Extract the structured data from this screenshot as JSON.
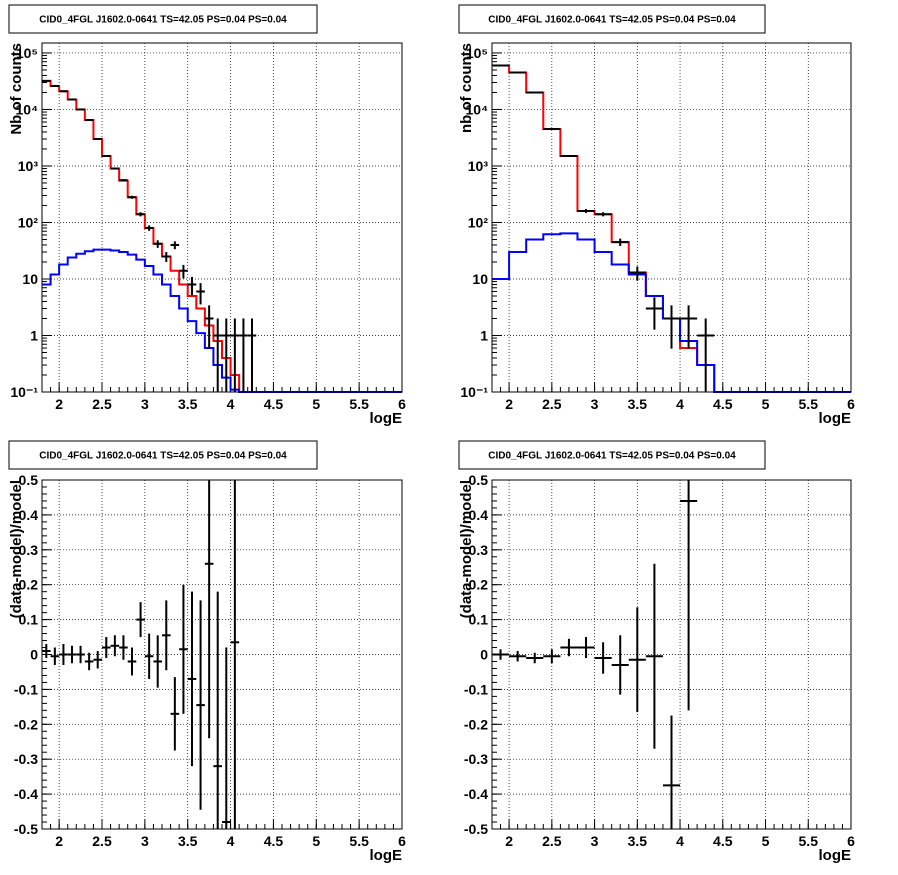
{
  "chart_data": [
    {
      "type": "line",
      "title": "CID0_4FGL J1602.0-0641 TS=42.05 PS=0.04 PS=0.04",
      "xlabel": "logE",
      "ylabel": "Nb of counts",
      "yscale": "log",
      "xlim": [
        1.8,
        6
      ],
      "ylim": [
        0.1,
        150000
      ],
      "x_ticks": [
        "2",
        "2.5",
        "3",
        "3.5",
        "4",
        "4.5",
        "5",
        "5.5",
        "6"
      ],
      "y_ticks": [
        "10^-1",
        "1",
        "10",
        "10^2",
        "10^3",
        "10^4",
        "10^5"
      ],
      "grid": true,
      "bin_edges": [
        1.8,
        1.9,
        2.0,
        2.1,
        2.2,
        2.3,
        2.4,
        2.5,
        2.6,
        2.7,
        2.8,
        2.9,
        3.0,
        3.1,
        3.2,
        3.3,
        3.4,
        3.5,
        3.6,
        3.7,
        3.8,
        3.9,
        4.0,
        4.1,
        4.2,
        4.3,
        4.4,
        4.5,
        4.6,
        4.7,
        4.8,
        4.9,
        5.0,
        5.1,
        5.2,
        5.3,
        5.4,
        5.5,
        5.6,
        5.7,
        5.8,
        5.9,
        6.0
      ],
      "series": [
        {
          "role": "total model",
          "color": "#ff0000",
          "values": [
            32000,
            26000,
            21000,
            15000,
            10000,
            6500,
            3000,
            1500,
            900,
            550,
            280,
            140,
            80,
            42,
            25,
            14,
            8,
            5,
            3,
            1.5,
            0.8,
            0.4,
            0.2,
            0.1,
            0.1,
            0.1,
            0.1,
            0.1,
            0.1,
            0.1,
            0.1,
            0.1,
            0.1,
            0.1,
            0.1,
            0.1,
            0.1,
            0.1,
            0.1,
            0.1,
            0.1,
            0.1
          ]
        },
        {
          "role": "source model",
          "color": "#0000ff",
          "values": [
            8,
            12,
            18,
            24,
            28,
            31,
            33,
            33,
            32,
            30,
            27,
            22,
            17,
            12,
            8,
            5,
            3,
            1.8,
            1.1,
            0.6,
            0.3,
            0.18,
            0.11,
            0.1,
            0.1,
            0.1,
            0.1,
            0.1,
            0.1,
            0.1,
            0.1,
            0.1,
            0.1,
            0.1,
            0.1,
            0.1,
            0.1,
            0.1,
            0.1,
            0.1,
            0.1,
            0.1
          ]
        },
        {
          "role": "data",
          "color": "#000000",
          "points": [
            {
              "x": 1.85,
              "y": 32000
            },
            {
              "x": 1.95,
              "y": 26000
            },
            {
              "x": 2.05,
              "y": 21000
            },
            {
              "x": 2.15,
              "y": 15000
            },
            {
              "x": 2.25,
              "y": 10000
            },
            {
              "x": 2.35,
              "y": 6500
            },
            {
              "x": 2.45,
              "y": 3000
            },
            {
              "x": 2.55,
              "y": 1500
            },
            {
              "x": 2.65,
              "y": 900
            },
            {
              "x": 2.75,
              "y": 560
            },
            {
              "x": 2.85,
              "y": 280
            },
            {
              "x": 2.95,
              "y": 140
            },
            {
              "x": 3.05,
              "y": 80
            },
            {
              "x": 3.15,
              "y": 42
            },
            {
              "x": 3.25,
              "y": 25
            },
            {
              "x": 3.35,
              "y": 40
            },
            {
              "x": 3.45,
              "y": 14
            },
            {
              "x": 3.55,
              "y": 8
            },
            {
              "x": 3.65,
              "y": 6
            },
            {
              "x": 3.75,
              "y": 2
            },
            {
              "x": 3.85,
              "y": 1
            },
            {
              "x": 3.95,
              "y": 1
            },
            {
              "x": 4.05,
              "y": 1
            },
            {
              "x": 4.15,
              "y": 1
            },
            {
              "x": 4.25,
              "y": 1
            }
          ]
        }
      ]
    },
    {
      "type": "line",
      "title": "CID0_4FGL J1602.0-0641 TS=42.05 PS=0.04 PS=0.04",
      "xlabel": "logE",
      "ylabel": "nb of counts",
      "yscale": "log",
      "xlim": [
        1.8,
        6
      ],
      "ylim": [
        0.1,
        150000
      ],
      "x_ticks": [
        "2",
        "2.5",
        "3",
        "3.5",
        "4",
        "4.5",
        "5",
        "5.5",
        "6"
      ],
      "y_ticks": [
        "10^-1",
        "1",
        "10",
        "10^2",
        "10^3",
        "10^4",
        "10^5"
      ],
      "grid": true,
      "bin_edges": [
        1.8,
        2.0,
        2.2,
        2.4,
        2.6,
        2.8,
        3.0,
        3.2,
        3.4,
        3.6,
        3.8,
        4.0,
        4.2,
        4.4,
        4.6,
        4.8,
        5.0,
        5.2,
        5.4,
        5.6,
        5.8,
        6.0
      ],
      "series": [
        {
          "role": "total model",
          "color": "#ff0000",
          "values": [
            60000,
            45000,
            20000,
            4500,
            1500,
            160,
            140,
            45,
            13,
            5,
            2,
            0.6,
            0.3,
            0.1,
            0.1,
            0.1,
            0.1,
            0.1,
            0.1,
            0.1,
            0.1
          ]
        },
        {
          "role": "source model",
          "color": "#0000ff",
          "values": [
            10,
            30,
            50,
            62,
            64,
            50,
            30,
            18,
            12,
            5,
            2,
            0.8,
            0.3,
            0.1,
            0.1,
            0.1,
            0.1,
            0.1,
            0.1,
            0.1,
            0.1
          ]
        },
        {
          "role": "data",
          "color": "#000000",
          "points": [
            {
              "x": 1.9,
              "y": 60000
            },
            {
              "x": 2.1,
              "y": 45000
            },
            {
              "x": 2.3,
              "y": 20000
            },
            {
              "x": 2.5,
              "y": 4500
            },
            {
              "x": 2.7,
              "y": 1500
            },
            {
              "x": 2.9,
              "y": 160
            },
            {
              "x": 3.1,
              "y": 140
            },
            {
              "x": 3.3,
              "y": 45
            },
            {
              "x": 3.5,
              "y": 13
            },
            {
              "x": 3.7,
              "y": 3
            },
            {
              "x": 3.9,
              "y": 2
            },
            {
              "x": 4.1,
              "y": 2
            },
            {
              "x": 4.3,
              "y": 1
            }
          ]
        }
      ]
    },
    {
      "type": "scatter",
      "title": "CID0_4FGL J1602.0-0641 TS=42.05 PS=0.04 PS=0.04",
      "xlabel": "logE",
      "ylabel": "(data-model)/model",
      "xlim": [
        1.8,
        6
      ],
      "ylim": [
        -0.5,
        0.5
      ],
      "x_ticks": [
        "2",
        "2.5",
        "3",
        "3.5",
        "4",
        "4.5",
        "5",
        "5.5",
        "6"
      ],
      "y_ticks": [
        "-0.5",
        "-0.4",
        "-0.3",
        "-0.2",
        "-0.1",
        "0",
        "0.1",
        "0.2",
        "0.3",
        "0.4",
        "0.5"
      ],
      "grid": true,
      "series": [
        {
          "role": "residuals",
          "color": "#000000",
          "points": [
            {
              "x": 1.85,
              "y": 0.01,
              "err": 0.02
            },
            {
              "x": 1.95,
              "y": -0.005,
              "err": 0.025
            },
            {
              "x": 2.05,
              "y": 0.0,
              "err": 0.03
            },
            {
              "x": 2.15,
              "y": 0.0,
              "err": 0.025
            },
            {
              "x": 2.25,
              "y": 0.0,
              "err": 0.025
            },
            {
              "x": 2.35,
              "y": -0.02,
              "err": 0.025
            },
            {
              "x": 2.45,
              "y": -0.015,
              "err": 0.025
            },
            {
              "x": 2.55,
              "y": 0.02,
              "err": 0.03
            },
            {
              "x": 2.65,
              "y": 0.025,
              "err": 0.03
            },
            {
              "x": 2.75,
              "y": 0.02,
              "err": 0.035
            },
            {
              "x": 2.85,
              "y": -0.02,
              "err": 0.04
            },
            {
              "x": 2.95,
              "y": 0.1,
              "err": 0.05
            },
            {
              "x": 3.05,
              "y": -0.005,
              "err": 0.065
            },
            {
              "x": 3.15,
              "y": -0.02,
              "err": 0.075
            },
            {
              "x": 3.25,
              "y": 0.055,
              "err": 0.1
            },
            {
              "x": 3.35,
              "y": -0.17,
              "err": 0.105
            },
            {
              "x": 3.45,
              "y": 0.015,
              "err": 0.185
            },
            {
              "x": 3.55,
              "y": -0.07,
              "err": 0.25
            },
            {
              "x": 3.65,
              "y": -0.145,
              "err": 0.3
            },
            {
              "x": 3.75,
              "y": 0.26,
              "err": 0.5
            },
            {
              "x": 3.85,
              "y": -0.32,
              "err": 0.5
            },
            {
              "x": 3.95,
              "y": -0.48,
              "err": 0.5
            },
            {
              "x": 4.05,
              "y": 0.035,
              "err": 0.6
            }
          ]
        }
      ]
    },
    {
      "type": "scatter",
      "title": "CID0_4FGL J1602.0-0641 TS=42.05 PS=0.04 PS=0.04",
      "xlabel": "logE",
      "ylabel": "(data-model)/model",
      "xlim": [
        1.8,
        6
      ],
      "ylim": [
        -0.5,
        0.5
      ],
      "x_ticks": [
        "2",
        "2.5",
        "3",
        "3.5",
        "4",
        "4.5",
        "5",
        "5.5",
        "6"
      ],
      "y_ticks": [
        "-0.5",
        "-0.4",
        "-0.3",
        "-0.2",
        "-0.1",
        "0",
        "0.1",
        "0.2",
        "0.3",
        "0.4",
        "0.5"
      ],
      "grid": true,
      "series": [
        {
          "role": "residuals",
          "color": "#000000",
          "points": [
            {
              "x": 1.9,
              "y": 0.0,
              "err": 0.015
            },
            {
              "x": 2.1,
              "y": -0.005,
              "err": 0.015
            },
            {
              "x": 2.3,
              "y": -0.01,
              "err": 0.015
            },
            {
              "x": 2.5,
              "y": -0.005,
              "err": 0.02
            },
            {
              "x": 2.7,
              "y": 0.02,
              "err": 0.025
            },
            {
              "x": 2.9,
              "y": 0.02,
              "err": 0.03
            },
            {
              "x": 3.1,
              "y": -0.01,
              "err": 0.045
            },
            {
              "x": 3.3,
              "y": -0.03,
              "err": 0.085
            },
            {
              "x": 3.5,
              "y": -0.015,
              "err": 0.15
            },
            {
              "x": 3.7,
              "y": -0.005,
              "err": 0.265
            },
            {
              "x": 3.9,
              "y": -0.375,
              "err": 0.2
            },
            {
              "x": 4.1,
              "y": 0.44,
              "err": 0.6
            }
          ]
        }
      ]
    }
  ]
}
